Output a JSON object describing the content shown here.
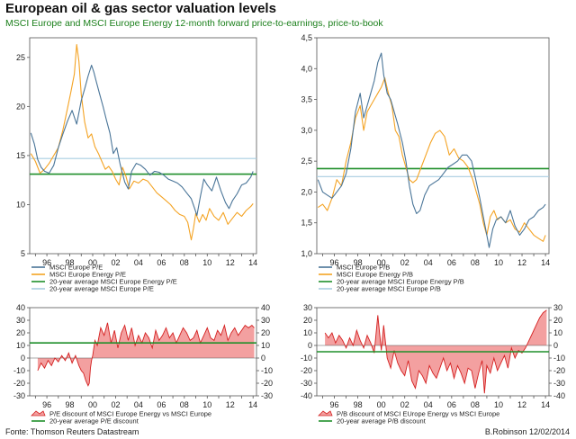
{
  "header": {
    "title": "European oil & gas sector valuation levels",
    "subtitle": "MSCI Europe and MSCI Europe Energy  12-month forward price-to-earnings,  price-to-book"
  },
  "footer": {
    "source": "Fonte: Thomson Reuters Datastream",
    "author": "B.Robinson  12/02/2014"
  },
  "colors": {
    "msci_europe": "#4a7598",
    "msci_energy": "#f4a323",
    "avg_energy": "#1f8f2a",
    "avg_europe": "#a8cde0",
    "discount_fill": "#f3a0a0",
    "discount_line": "#d42020"
  },
  "chart_data": [
    {
      "id": "pe",
      "type": "line",
      "xlim": [
        1994.5,
        2014.3
      ],
      "ylim": [
        5,
        27
      ],
      "yticks": [
        "5",
        "10",
        "15",
        "20",
        "25"
      ],
      "ytick_values": [
        5,
        10,
        15,
        20,
        25
      ],
      "xticks": [
        "96",
        "98",
        "00",
        "02",
        "04",
        "06",
        "08",
        "10",
        "12",
        "14"
      ],
      "xtick_values": [
        1996,
        1998,
        2000,
        2002,
        2004,
        2006,
        2008,
        2010,
        2012,
        2014
      ],
      "series": [
        {
          "name": "MSCI Europe P/E",
          "color_key": "msci_europe",
          "x": [
            1994.6,
            1994.9,
            1995.2,
            1995.5,
            1995.8,
            1996.2,
            1996.6,
            1997.0,
            1997.4,
            1997.8,
            1998.2,
            1998.6,
            1999.0,
            1999.3,
            1999.6,
            1999.9,
            2000.1,
            2000.3,
            2000.6,
            2000.9,
            2001.2,
            2001.5,
            2001.8,
            2002.1,
            2002.4,
            2002.8,
            2003.1,
            2003.4,
            2003.8,
            2004.2,
            2004.6,
            2005.0,
            2005.4,
            2005.8,
            2006.2,
            2006.6,
            2007.0,
            2007.4,
            2007.8,
            2008.2,
            2008.6,
            2008.9,
            2009.1,
            2009.4,
            2009.7,
            2010.0,
            2010.4,
            2010.8,
            2011.2,
            2011.6,
            2011.9,
            2012.2,
            2012.6,
            2013.0,
            2013.4,
            2013.8,
            2014.0
          ],
          "y": [
            17.3,
            16.2,
            14.6,
            13.8,
            13.4,
            13.2,
            14.0,
            15.8,
            17.2,
            18.5,
            19.6,
            18.2,
            20.6,
            21.8,
            23.1,
            24.2,
            23.5,
            22.6,
            21.3,
            20.0,
            18.6,
            17.3,
            15.2,
            15.8,
            14.1,
            12.3,
            11.6,
            13.4,
            14.2,
            14.0,
            13.6,
            13.0,
            13.4,
            13.3,
            13.0,
            12.6,
            12.4,
            12.2,
            11.8,
            11.2,
            10.6,
            9.6,
            8.9,
            10.8,
            12.6,
            12.0,
            11.4,
            12.8,
            11.4,
            10.2,
            9.6,
            10.4,
            11.1,
            12.0,
            12.2,
            12.8,
            13.4
          ]
        },
        {
          "name": "MSCI Europe Energy P/E",
          "color_key": "msci_energy",
          "x": [
            1994.6,
            1995.0,
            1995.4,
            1995.8,
            1996.2,
            1996.6,
            1997.0,
            1997.4,
            1997.8,
            1998.1,
            1998.4,
            1998.6,
            1998.8,
            1999.0,
            1999.3,
            1999.6,
            1999.9,
            2000.2,
            2000.5,
            2000.8,
            2001.1,
            2001.4,
            2001.7,
            2002.0,
            2002.3,
            2002.6,
            2002.9,
            2003.2,
            2003.6,
            2004.0,
            2004.4,
            2004.8,
            2005.2,
            2005.6,
            2006.0,
            2006.4,
            2006.8,
            2007.2,
            2007.6,
            2008.0,
            2008.3,
            2008.6,
            2008.8,
            2009.0,
            2009.3,
            2009.6,
            2009.9,
            2010.2,
            2010.6,
            2011.0,
            2011.4,
            2011.8,
            2012.2,
            2012.6,
            2013.0,
            2013.4,
            2013.8,
            2014.0
          ],
          "y": [
            15.2,
            14.4,
            13.2,
            13.6,
            14.2,
            15.0,
            15.8,
            17.6,
            19.8,
            21.5,
            23.3,
            26.3,
            24.6,
            21.2,
            18.4,
            16.8,
            17.2,
            15.9,
            15.2,
            14.4,
            13.6,
            13.9,
            13.4,
            12.6,
            12.0,
            13.8,
            12.9,
            11.6,
            12.4,
            12.2,
            12.6,
            12.4,
            11.8,
            11.2,
            10.8,
            10.4,
            10.0,
            9.4,
            9.0,
            8.8,
            8.2,
            6.4,
            7.6,
            9.1,
            8.2,
            9.0,
            8.4,
            9.6,
            8.8,
            8.4,
            9.2,
            8.0,
            8.6,
            9.2,
            8.8,
            9.4,
            9.8,
            10.1
          ]
        },
        {
          "name": "20-year average MSCI Europe Energy P/E",
          "color_key": "avg_energy",
          "x": [
            1994.5,
            2014.3
          ],
          "y": [
            13.1,
            13.1
          ]
        },
        {
          "name": "20-year average MSCI Europe P/E",
          "color_key": "avg_europe",
          "x": [
            1994.5,
            2014.3
          ],
          "y": [
            14.7,
            14.7
          ]
        }
      ]
    },
    {
      "id": "pb",
      "type": "line",
      "xlim": [
        1994.5,
        2014.3
      ],
      "ylim": [
        1.0,
        4.5
      ],
      "yticks": [
        "1,0",
        "1,5",
        "2,0",
        "2,5",
        "3,0",
        "3,5",
        "4,0",
        "4,5"
      ],
      "ytick_values": [
        1.0,
        1.5,
        2.0,
        2.5,
        3.0,
        3.5,
        4.0,
        4.5
      ],
      "xticks": [
        "96",
        "98",
        "00",
        "02",
        "04",
        "06",
        "08",
        "10",
        "12",
        "14"
      ],
      "xtick_values": [
        1996,
        1998,
        2000,
        2002,
        2004,
        2006,
        2008,
        2010,
        2012,
        2014
      ],
      "series": [
        {
          "name": "MSCI Europe P/B",
          "color_key": "msci_europe",
          "x": [
            1994.6,
            1995.0,
            1995.4,
            1995.8,
            1996.2,
            1996.6,
            1997.0,
            1997.4,
            1997.8,
            1998.2,
            1998.5,
            1998.8,
            1999.1,
            1999.4,
            1999.7,
            2000.0,
            2000.2,
            2000.5,
            2000.8,
            2001.1,
            2001.4,
            2001.8,
            2002.1,
            2002.4,
            2002.7,
            2003.0,
            2003.3,
            2003.7,
            2004.1,
            2004.5,
            2004.9,
            2005.3,
            2005.7,
            2006.1,
            2006.5,
            2006.9,
            2007.3,
            2007.7,
            2008.0,
            2008.4,
            2008.7,
            2009.0,
            2009.2,
            2009.5,
            2009.8,
            2010.2,
            2010.6,
            2011.0,
            2011.4,
            2011.8,
            2012.2,
            2012.6,
            2013.0,
            2013.4,
            2013.8,
            2014.0
          ],
          "y": [
            2.2,
            2.0,
            1.95,
            1.9,
            2.0,
            2.1,
            2.3,
            2.7,
            3.3,
            3.6,
            3.2,
            3.4,
            3.6,
            3.8,
            4.1,
            4.25,
            3.9,
            3.6,
            3.5,
            3.3,
            3.1,
            2.8,
            2.5,
            2.1,
            1.8,
            1.65,
            1.7,
            1.95,
            2.1,
            2.15,
            2.2,
            2.3,
            2.4,
            2.45,
            2.5,
            2.6,
            2.6,
            2.5,
            2.25,
            1.9,
            1.6,
            1.3,
            1.1,
            1.4,
            1.55,
            1.6,
            1.5,
            1.7,
            1.45,
            1.3,
            1.4,
            1.55,
            1.6,
            1.7,
            1.75,
            1.8
          ]
        },
        {
          "name": "MSCI Europe Energy P/B",
          "color_key": "msci_energy",
          "x": [
            1994.6,
            1995.0,
            1995.4,
            1995.8,
            1996.2,
            1996.6,
            1997.0,
            1997.4,
            1997.8,
            1998.2,
            1998.5,
            1998.8,
            1999.1,
            1999.4,
            1999.7,
            2000.0,
            2000.3,
            2000.6,
            2000.9,
            2001.2,
            2001.5,
            2001.8,
            2002.1,
            2002.4,
            2002.7,
            2003.0,
            2003.4,
            2003.8,
            2004.2,
            2004.6,
            2005.0,
            2005.4,
            2005.8,
            2006.2,
            2006.6,
            2007.0,
            2007.4,
            2007.8,
            2008.1,
            2008.4,
            2008.7,
            2009.0,
            2009.3,
            2009.6,
            2009.9,
            2010.2,
            2010.6,
            2011.0,
            2011.4,
            2011.8,
            2012.2,
            2012.6,
            2013.0,
            2013.4,
            2013.8,
            2014.0
          ],
          "y": [
            1.75,
            1.8,
            1.7,
            1.9,
            2.2,
            2.1,
            2.5,
            2.8,
            3.2,
            3.4,
            3.0,
            3.3,
            3.4,
            3.5,
            3.6,
            3.7,
            3.85,
            3.6,
            3.4,
            3.0,
            2.9,
            2.6,
            2.4,
            2.2,
            2.15,
            2.2,
            2.4,
            2.6,
            2.8,
            2.95,
            3.0,
            2.9,
            2.6,
            2.7,
            2.55,
            2.5,
            2.4,
            2.2,
            2.0,
            1.8,
            1.5,
            1.3,
            1.6,
            1.7,
            1.55,
            1.6,
            1.5,
            1.55,
            1.4,
            1.35,
            1.5,
            1.4,
            1.3,
            1.25,
            1.2,
            1.3
          ]
        },
        {
          "name": "20-year average MSCI Europe Energy P/B",
          "color_key": "avg_energy",
          "x": [
            1994.5,
            2014.3
          ],
          "y": [
            2.38,
            2.38
          ]
        },
        {
          "name": "20-year average MSCI Europe P/B",
          "color_key": "avg_europe",
          "x": [
            1994.5,
            2014.3
          ],
          "y": [
            2.25,
            2.25
          ]
        }
      ]
    },
    {
      "id": "pe_discount",
      "type": "area",
      "xlim": [
        1994.5,
        2014.3
      ],
      "ylim": [
        -30,
        40
      ],
      "yticks": [
        "-30",
        "-20",
        "-10",
        "0",
        "10",
        "20",
        "30",
        "40"
      ],
      "ytick_values": [
        -30,
        -20,
        -10,
        0,
        10,
        20,
        30,
        40
      ],
      "xticks": [
        "96",
        "98",
        "00",
        "02",
        "04",
        "06",
        "08",
        "10",
        "12",
        "14"
      ],
      "xtick_values": [
        1996,
        1998,
        2000,
        2002,
        2004,
        2006,
        2008,
        2010,
        2012,
        2014
      ],
      "series": [
        {
          "name": "P/E discount of MSCI Europe Energy vs MSCI Europe",
          "color_key": "discount_line",
          "x": [
            1995.2,
            1995.5,
            1995.8,
            1996.1,
            1996.4,
            1996.7,
            1997.0,
            1997.3,
            1997.6,
            1997.9,
            1998.2,
            1998.5,
            1998.8,
            1999.0,
            1999.2,
            1999.4,
            1999.6,
            1999.7,
            1999.8,
            1999.9,
            2000.0,
            2000.2,
            2000.4,
            2000.7,
            2001.0,
            2001.3,
            2001.6,
            2001.9,
            2002.2,
            2002.5,
            2002.8,
            2003.1,
            2003.4,
            2003.7,
            2004.0,
            2004.3,
            2004.6,
            2004.9,
            2005.2,
            2005.5,
            2005.8,
            2006.1,
            2006.4,
            2006.7,
            2007.0,
            2007.3,
            2007.6,
            2007.9,
            2008.2,
            2008.5,
            2008.8,
            2009.1,
            2009.4,
            2009.7,
            2010.0,
            2010.3,
            2010.6,
            2010.9,
            2011.2,
            2011.5,
            2011.8,
            2012.1,
            2012.4,
            2012.7,
            2013.0,
            2013.3,
            2013.6,
            2013.9,
            2014.1
          ],
          "y": [
            -10,
            -4,
            -8,
            -2,
            -6,
            0,
            -3,
            2,
            -2,
            4,
            -4,
            2,
            -6,
            -10,
            -12,
            -18,
            -22,
            -20,
            -8,
            -2,
            2,
            14,
            10,
            24,
            18,
            28,
            12,
            22,
            8,
            20,
            26,
            14,
            24,
            10,
            18,
            12,
            20,
            16,
            8,
            22,
            14,
            18,
            24,
            16,
            20,
            12,
            18,
            24,
            20,
            14,
            16,
            22,
            12,
            18,
            24,
            16,
            14,
            22,
            18,
            26,
            14,
            20,
            24,
            18,
            22,
            26,
            24,
            26,
            24
          ]
        },
        {
          "name": "20-year average P/E discount",
          "color_key": "avg_energy",
          "x": [
            1994.5,
            2014.3
          ],
          "y": [
            12,
            12
          ]
        }
      ]
    },
    {
      "id": "pb_discount",
      "type": "area",
      "xlim": [
        1994.5,
        2014.3
      ],
      "ylim": [
        -40,
        30
      ],
      "yticks": [
        "-40",
        "-30",
        "-20",
        "-10",
        "0",
        "10",
        "20",
        "30"
      ],
      "ytick_values": [
        -40,
        -30,
        -20,
        -10,
        0,
        10,
        20,
        30
      ],
      "xticks": [
        "96",
        "98",
        "00",
        "02",
        "04",
        "06",
        "08",
        "10",
        "12",
        "14"
      ],
      "xtick_values": [
        1996,
        1998,
        2000,
        2002,
        2004,
        2006,
        2008,
        2010,
        2012,
        2014
      ],
      "series": [
        {
          "name": "P/B discount of MSCI EUrope Energy vs MSCI Europe",
          "color_key": "discount_line",
          "x": [
            1995.2,
            1995.5,
            1995.8,
            1996.1,
            1996.4,
            1996.7,
            1997.0,
            1997.3,
            1997.6,
            1997.9,
            1998.2,
            1998.5,
            1998.8,
            1999.1,
            1999.4,
            1999.7,
            2000.0,
            2000.2,
            2000.5,
            2000.8,
            2001.1,
            2001.4,
            2001.7,
            2002.0,
            2002.3,
            2002.6,
            2002.9,
            2003.2,
            2003.5,
            2003.8,
            2004.1,
            2004.4,
            2004.7,
            2005.0,
            2005.3,
            2005.6,
            2005.9,
            2006.2,
            2006.5,
            2006.8,
            2007.1,
            2007.4,
            2007.7,
            2008.0,
            2008.3,
            2008.6,
            2008.8,
            2009.0,
            2009.3,
            2009.6,
            2009.9,
            2010.2,
            2010.5,
            2010.8,
            2011.1,
            2011.4,
            2011.7,
            2012.0,
            2012.3,
            2012.6,
            2012.9,
            2013.2,
            2013.5,
            2013.8,
            2014.1
          ],
          "y": [
            10,
            6,
            10,
            2,
            8,
            4,
            -2,
            6,
            0,
            12,
            4,
            -2,
            8,
            2,
            -6,
            24,
            -4,
            16,
            -10,
            -18,
            -4,
            -14,
            -20,
            -24,
            -12,
            -28,
            -34,
            -20,
            -24,
            -30,
            -16,
            -22,
            -26,
            -18,
            -10,
            -20,
            -14,
            -26,
            -16,
            -22,
            -30,
            -18,
            -20,
            -34,
            -22,
            -12,
            -38,
            -16,
            -22,
            -10,
            -20,
            -14,
            -8,
            -18,
            -2,
            -10,
            -4,
            -6,
            -2,
            4,
            10,
            16,
            22,
            26,
            28
          ]
        },
        {
          "name": "20-year average P/B discount",
          "color_key": "avg_energy",
          "x": [
            1994.5,
            2014.3
          ],
          "y": [
            -5,
            -5
          ]
        }
      ]
    }
  ]
}
